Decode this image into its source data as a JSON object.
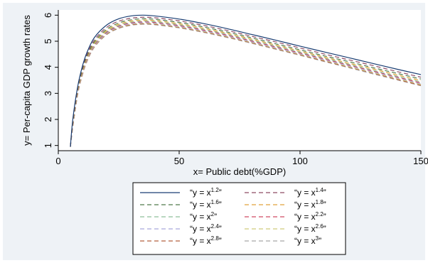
{
  "chart_data": {
    "type": "line",
    "xlabel": "x= Public debt(%GDP)",
    "ylabel": "y= Per-capita GDP growth rates",
    "xlim": [
      0,
      150
    ],
    "ylim": [
      0.8,
      6.2
    ],
    "xticks": [
      0,
      50,
      100,
      150
    ],
    "yticks": [
      1,
      2,
      3,
      4,
      5,
      6
    ],
    "grid": false,
    "legend_position": "bottom",
    "series": [
      {
        "name": "“y = x^1.2”",
        "label_base": "“y = x",
        "label_exp": "1.2",
        "label_end": "”",
        "color": "#1a3e73",
        "dash": "",
        "x": [
          5,
          6,
          8,
          10,
          12,
          15,
          20,
          25,
          30,
          35,
          40,
          50,
          60,
          70,
          80,
          90,
          100,
          110,
          120,
          130,
          140,
          150
        ],
        "y": [
          0.95,
          2.0,
          3.25,
          4.05,
          4.6,
          5.15,
          5.62,
          5.86,
          5.97,
          6.0,
          5.97,
          5.85,
          5.68,
          5.48,
          5.26,
          5.04,
          4.81,
          4.59,
          4.37,
          4.15,
          3.93,
          3.72
        ]
      },
      {
        "name": "“y = x^1.4”",
        "label_base": "“y = x",
        "label_exp": "1.4",
        "label_end": "”",
        "color": "#8e4b63",
        "dash": "6,4",
        "x": [
          5,
          6,
          8,
          10,
          12,
          15,
          20,
          25,
          30,
          35,
          40,
          50,
          60,
          70,
          80,
          90,
          100,
          110,
          120,
          130,
          140,
          150
        ],
        "y": [
          0.95,
          1.95,
          3.2,
          3.98,
          4.52,
          5.06,
          5.53,
          5.77,
          5.88,
          5.92,
          5.9,
          5.78,
          5.61,
          5.41,
          5.19,
          4.97,
          4.74,
          4.51,
          4.29,
          4.07,
          3.84,
          3.62
        ]
      },
      {
        "name": "“y = x^1.6”",
        "label_base": "“y = x",
        "label_exp": "1.6",
        "label_end": "”",
        "color": "#4f7a4a",
        "dash": "6,4",
        "x": [
          5,
          6,
          8,
          10,
          12,
          15,
          20,
          25,
          30,
          35,
          40,
          50,
          60,
          70,
          80,
          90,
          100,
          110,
          120,
          130,
          140,
          150
        ],
        "y": [
          0.95,
          1.9,
          3.15,
          3.92,
          4.46,
          4.99,
          5.46,
          5.7,
          5.82,
          5.86,
          5.84,
          5.72,
          5.55,
          5.35,
          5.13,
          4.9,
          4.67,
          4.44,
          4.22,
          3.99,
          3.77,
          3.55
        ]
      },
      {
        "name": "“y = x^1.8”",
        "label_base": "“y = x",
        "label_exp": "1.8",
        "label_end": "”",
        "color": "#e0a23a",
        "dash": "6,4",
        "x": [
          5,
          6,
          8,
          10,
          12,
          15,
          20,
          25,
          30,
          35,
          40,
          50,
          60,
          70,
          80,
          90,
          100,
          110,
          120,
          130,
          140,
          150
        ],
        "y": [
          0.95,
          1.86,
          3.1,
          3.87,
          4.41,
          4.94,
          5.41,
          5.65,
          5.77,
          5.81,
          5.79,
          5.67,
          5.5,
          5.3,
          5.08,
          4.85,
          4.62,
          4.39,
          4.16,
          3.94,
          3.71,
          3.49
        ]
      },
      {
        "name": "“y = x^2”",
        "label_base": "“y = x",
        "label_exp": "2",
        "label_end": "”",
        "color": "#8fbf9a",
        "dash": "6,4",
        "x": [
          5,
          6,
          8,
          10,
          12,
          15,
          20,
          25,
          30,
          35,
          40,
          50,
          60,
          70,
          80,
          90,
          100,
          110,
          120,
          130,
          140,
          150
        ],
        "y": [
          0.95,
          1.82,
          3.06,
          3.83,
          4.37,
          4.9,
          5.37,
          5.61,
          5.73,
          5.77,
          5.75,
          5.63,
          5.46,
          5.26,
          5.04,
          4.81,
          4.58,
          4.35,
          4.12,
          3.89,
          3.66,
          3.44
        ]
      },
      {
        "name": "“y = x^2.2”",
        "label_base": "“y = x",
        "label_exp": "2.2",
        "label_end": "”",
        "color": "#d04a63",
        "dash": "6,4",
        "x": [
          5,
          6,
          8,
          10,
          12,
          15,
          20,
          25,
          30,
          35,
          40,
          50,
          60,
          70,
          80,
          90,
          100,
          110,
          120,
          130,
          140,
          150
        ],
        "y": [
          0.95,
          1.79,
          3.03,
          3.8,
          4.34,
          4.87,
          5.34,
          5.58,
          5.7,
          5.74,
          5.72,
          5.6,
          5.43,
          5.23,
          5.01,
          4.78,
          4.55,
          4.32,
          4.09,
          3.86,
          3.63,
          3.4
        ]
      },
      {
        "name": "“y = x^2.4”",
        "label_base": "“y = x",
        "label_exp": "2.4",
        "label_end": "”",
        "color": "#a9a6dc",
        "dash": "6,4",
        "x": [
          5,
          6,
          8,
          10,
          12,
          15,
          20,
          25,
          30,
          35,
          40,
          50,
          60,
          70,
          80,
          90,
          100,
          110,
          120,
          130,
          140,
          150
        ],
        "y": [
          0.95,
          1.76,
          3.0,
          3.77,
          4.31,
          4.84,
          5.31,
          5.55,
          5.67,
          5.71,
          5.69,
          5.57,
          5.4,
          5.2,
          4.98,
          4.75,
          4.52,
          4.29,
          4.06,
          3.83,
          3.6,
          3.37
        ]
      },
      {
        "name": "“y = x^2.6”",
        "label_base": "“y = x",
        "label_exp": "2.6",
        "label_end": "”",
        "color": "#cfc97a",
        "dash": "6,4",
        "x": [
          5,
          6,
          8,
          10,
          12,
          15,
          20,
          25,
          30,
          35,
          40,
          50,
          60,
          70,
          80,
          90,
          100,
          110,
          120,
          130,
          140,
          150
        ],
        "y": [
          0.95,
          1.74,
          2.98,
          3.75,
          4.29,
          4.82,
          5.29,
          5.53,
          5.65,
          5.69,
          5.67,
          5.55,
          5.38,
          5.18,
          4.96,
          4.73,
          4.5,
          4.27,
          4.03,
          3.8,
          3.57,
          3.34
        ]
      },
      {
        "name": "“y = x^2.8”",
        "label_base": "“y = x",
        "label_exp": "2.8",
        "label_end": "”",
        "color": "#b5603d",
        "dash": "6,4",
        "x": [
          5,
          6,
          8,
          10,
          12,
          15,
          20,
          25,
          30,
          35,
          40,
          50,
          60,
          70,
          80,
          90,
          100,
          110,
          120,
          130,
          140,
          150
        ],
        "y": [
          0.95,
          1.72,
          2.96,
          3.73,
          4.27,
          4.8,
          5.27,
          5.51,
          5.63,
          5.67,
          5.65,
          5.53,
          5.36,
          5.16,
          4.94,
          4.71,
          4.48,
          4.24,
          4.01,
          3.78,
          3.54,
          3.31
        ]
      },
      {
        "name": "“y = x^3”",
        "label_base": "“y = x",
        "label_exp": "3",
        "label_end": "”",
        "color": "#a8a8a8",
        "dash": "6,4",
        "x": [
          5,
          6,
          8,
          10,
          12,
          15,
          20,
          25,
          30,
          35,
          40,
          50,
          60,
          70,
          80,
          90,
          100,
          110,
          120,
          130,
          140,
          150
        ],
        "y": [
          0.95,
          1.7,
          2.94,
          3.71,
          4.25,
          4.78,
          5.25,
          5.49,
          5.61,
          5.65,
          5.63,
          5.51,
          5.34,
          5.14,
          4.92,
          4.69,
          4.46,
          4.22,
          3.99,
          3.75,
          3.52,
          3.29
        ]
      }
    ]
  }
}
